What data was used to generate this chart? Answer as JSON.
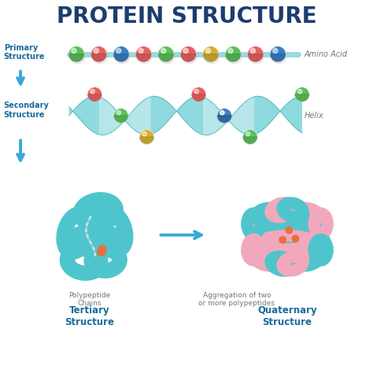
{
  "title": "PROTEIN STRUCTURE",
  "title_color": "#1c3d6e",
  "title_fontsize": 20,
  "bg_color": "#ffffff",
  "label_primary": "Primary\nStructure",
  "label_secondary": "Secondary\nStructure",
  "label_tertiary": "Tertiary\nStructure",
  "label_quaternary": "Quaternary\nStructure",
  "label_amino": "Amino Acid",
  "label_helix": "Helix",
  "label_polypeptide": "Polypeptide\nChains",
  "label_aggregation": "Aggregation of two\nor more polypeptides",
  "label_color_bold": "#1a6b9a",
  "label_color_normal": "#777777",
  "teal_color": "#4ec5cc",
  "teal_dark": "#38adb5",
  "pink_color": "#f2a8bc",
  "pink_dark": "#e088a0",
  "arrow_color": "#3aa8d8",
  "bead_colors_primary": [
    "#5bc05b",
    "#e86060",
    "#3a7fc4",
    "#e86060",
    "#5bc05b",
    "#e86060",
    "#d4b030",
    "#5bc05b",
    "#e86060",
    "#3a7fc4"
  ],
  "bead_colors_helix_top": [
    "#e86060",
    "#5bc05b",
    "#e86060",
    "#3a7fc4"
  ],
  "bead_colors_helix_bot": [
    "#d4b030",
    "#5bc05b",
    "#d4b030",
    "#5bc05b"
  ],
  "orange_color": "#e87040"
}
